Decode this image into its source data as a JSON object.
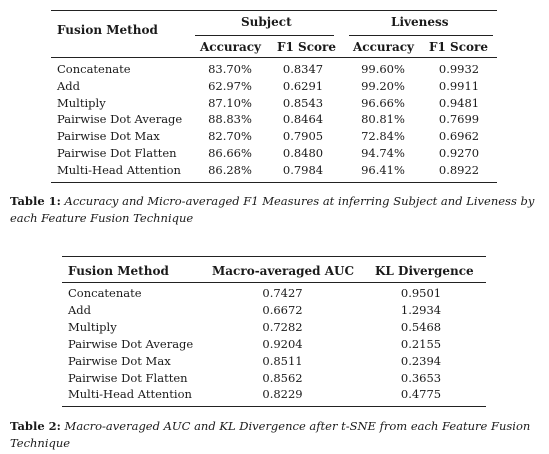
{
  "table1": {
    "header": {
      "method": "Fusion Method",
      "subject": "Subject",
      "liveness": "Liveness",
      "accuracy": "Accuracy",
      "f1": "F1 Score"
    },
    "rows": [
      {
        "method": "Concatenate",
        "subj_acc": "83.70%",
        "subj_f1": "0.8347",
        "live_acc": "99.60%",
        "live_f1": "0.9932"
      },
      {
        "method": "Add",
        "subj_acc": "62.97%",
        "subj_f1": "0.6291",
        "live_acc": "99.20%",
        "live_f1": "0.9911"
      },
      {
        "method": "Multiply",
        "subj_acc": "87.10%",
        "subj_f1": "0.8543",
        "live_acc": "96.66%",
        "live_f1": "0.9481"
      },
      {
        "method": "Pairwise Dot Average",
        "subj_acc": "88.83%",
        "subj_f1": "0.8464",
        "live_acc": "80.81%",
        "live_f1": "0.7699"
      },
      {
        "method": "Pairwise Dot Max",
        "subj_acc": "82.70%",
        "subj_f1": "0.7905",
        "live_acc": "72.84%",
        "live_f1": "0.6962"
      },
      {
        "method": "Pairwise Dot Flatten",
        "subj_acc": "86.66%",
        "subj_f1": "0.8480",
        "live_acc": "94.74%",
        "live_f1": "0.9270"
      },
      {
        "method": "Multi-Head Attention",
        "subj_acc": "86.28%",
        "subj_f1": "0.7984",
        "live_acc": "96.41%",
        "live_f1": "0.8922"
      }
    ],
    "caption_label": "Table 1:",
    "caption_text": "Accuracy and Micro-averaged F1 Measures at inferring Subject and Liveness by each Feature Fusion Technique"
  },
  "table2": {
    "header": {
      "method": "Fusion Method",
      "auc": "Macro-averaged AUC",
      "kl": "KL Divergence"
    },
    "rows": [
      {
        "method": "Concatenate",
        "auc": "0.7427",
        "kl": "0.9501"
      },
      {
        "method": "Add",
        "auc": "0.6672",
        "kl": "1.2934"
      },
      {
        "method": "Multiply",
        "auc": "0.7282",
        "kl": "0.5468"
      },
      {
        "method": "Pairwise Dot Average",
        "auc": "0.9204",
        "kl": "0.2155"
      },
      {
        "method": "Pairwise Dot Max",
        "auc": "0.8511",
        "kl": "0.2394"
      },
      {
        "method": "Pairwise Dot Flatten",
        "auc": "0.8562",
        "kl": "0.3653"
      },
      {
        "method": "Multi-Head Attention",
        "auc": "0.8229",
        "kl": "0.4775"
      }
    ],
    "caption_label": "Table 2:",
    "caption_text": "Macro-averaged AUC and KL Divergence after t-SNE from each Feature Fusion Technique"
  }
}
